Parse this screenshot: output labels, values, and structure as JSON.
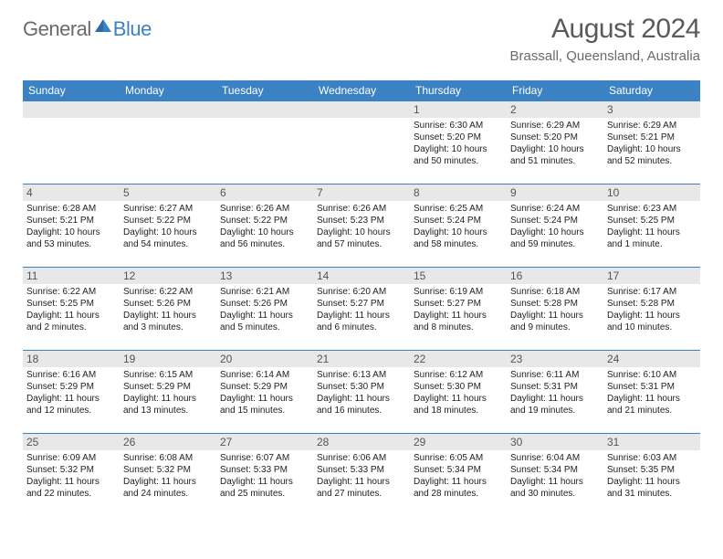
{
  "logo": {
    "general": "General",
    "blue": "Blue"
  },
  "header": {
    "title": "August 2024",
    "location": "Brassall, Queensland, Australia"
  },
  "colors": {
    "accent": "#3b82c4",
    "header_bg": "#3b82c4",
    "header_fg": "#ffffff",
    "daynum_bg": "#e8e8e8",
    "daynum_fg": "#555555",
    "border": "#3b82c4",
    "text": "#222222",
    "title_fg": "#5a5a5a",
    "logo_gray": "#6a6a6a"
  },
  "day_headers": [
    "Sunday",
    "Monday",
    "Tuesday",
    "Wednesday",
    "Thursday",
    "Friday",
    "Saturday"
  ],
  "weeks": [
    [
      {
        "num": "",
        "sunrise": "",
        "sunset": "",
        "daylight": ""
      },
      {
        "num": "",
        "sunrise": "",
        "sunset": "",
        "daylight": ""
      },
      {
        "num": "",
        "sunrise": "",
        "sunset": "",
        "daylight": ""
      },
      {
        "num": "",
        "sunrise": "",
        "sunset": "",
        "daylight": ""
      },
      {
        "num": "1",
        "sunrise": "Sunrise: 6:30 AM",
        "sunset": "Sunset: 5:20 PM",
        "daylight": "Daylight: 10 hours and 50 minutes."
      },
      {
        "num": "2",
        "sunrise": "Sunrise: 6:29 AM",
        "sunset": "Sunset: 5:20 PM",
        "daylight": "Daylight: 10 hours and 51 minutes."
      },
      {
        "num": "3",
        "sunrise": "Sunrise: 6:29 AM",
        "sunset": "Sunset: 5:21 PM",
        "daylight": "Daylight: 10 hours and 52 minutes."
      }
    ],
    [
      {
        "num": "4",
        "sunrise": "Sunrise: 6:28 AM",
        "sunset": "Sunset: 5:21 PM",
        "daylight": "Daylight: 10 hours and 53 minutes."
      },
      {
        "num": "5",
        "sunrise": "Sunrise: 6:27 AM",
        "sunset": "Sunset: 5:22 PM",
        "daylight": "Daylight: 10 hours and 54 minutes."
      },
      {
        "num": "6",
        "sunrise": "Sunrise: 6:26 AM",
        "sunset": "Sunset: 5:22 PM",
        "daylight": "Daylight: 10 hours and 56 minutes."
      },
      {
        "num": "7",
        "sunrise": "Sunrise: 6:26 AM",
        "sunset": "Sunset: 5:23 PM",
        "daylight": "Daylight: 10 hours and 57 minutes."
      },
      {
        "num": "8",
        "sunrise": "Sunrise: 6:25 AM",
        "sunset": "Sunset: 5:24 PM",
        "daylight": "Daylight: 10 hours and 58 minutes."
      },
      {
        "num": "9",
        "sunrise": "Sunrise: 6:24 AM",
        "sunset": "Sunset: 5:24 PM",
        "daylight": "Daylight: 10 hours and 59 minutes."
      },
      {
        "num": "10",
        "sunrise": "Sunrise: 6:23 AM",
        "sunset": "Sunset: 5:25 PM",
        "daylight": "Daylight: 11 hours and 1 minute."
      }
    ],
    [
      {
        "num": "11",
        "sunrise": "Sunrise: 6:22 AM",
        "sunset": "Sunset: 5:25 PM",
        "daylight": "Daylight: 11 hours and 2 minutes."
      },
      {
        "num": "12",
        "sunrise": "Sunrise: 6:22 AM",
        "sunset": "Sunset: 5:26 PM",
        "daylight": "Daylight: 11 hours and 3 minutes."
      },
      {
        "num": "13",
        "sunrise": "Sunrise: 6:21 AM",
        "sunset": "Sunset: 5:26 PM",
        "daylight": "Daylight: 11 hours and 5 minutes."
      },
      {
        "num": "14",
        "sunrise": "Sunrise: 6:20 AM",
        "sunset": "Sunset: 5:27 PM",
        "daylight": "Daylight: 11 hours and 6 minutes."
      },
      {
        "num": "15",
        "sunrise": "Sunrise: 6:19 AM",
        "sunset": "Sunset: 5:27 PM",
        "daylight": "Daylight: 11 hours and 8 minutes."
      },
      {
        "num": "16",
        "sunrise": "Sunrise: 6:18 AM",
        "sunset": "Sunset: 5:28 PM",
        "daylight": "Daylight: 11 hours and 9 minutes."
      },
      {
        "num": "17",
        "sunrise": "Sunrise: 6:17 AM",
        "sunset": "Sunset: 5:28 PM",
        "daylight": "Daylight: 11 hours and 10 minutes."
      }
    ],
    [
      {
        "num": "18",
        "sunrise": "Sunrise: 6:16 AM",
        "sunset": "Sunset: 5:29 PM",
        "daylight": "Daylight: 11 hours and 12 minutes."
      },
      {
        "num": "19",
        "sunrise": "Sunrise: 6:15 AM",
        "sunset": "Sunset: 5:29 PM",
        "daylight": "Daylight: 11 hours and 13 minutes."
      },
      {
        "num": "20",
        "sunrise": "Sunrise: 6:14 AM",
        "sunset": "Sunset: 5:29 PM",
        "daylight": "Daylight: 11 hours and 15 minutes."
      },
      {
        "num": "21",
        "sunrise": "Sunrise: 6:13 AM",
        "sunset": "Sunset: 5:30 PM",
        "daylight": "Daylight: 11 hours and 16 minutes."
      },
      {
        "num": "22",
        "sunrise": "Sunrise: 6:12 AM",
        "sunset": "Sunset: 5:30 PM",
        "daylight": "Daylight: 11 hours and 18 minutes."
      },
      {
        "num": "23",
        "sunrise": "Sunrise: 6:11 AM",
        "sunset": "Sunset: 5:31 PM",
        "daylight": "Daylight: 11 hours and 19 minutes."
      },
      {
        "num": "24",
        "sunrise": "Sunrise: 6:10 AM",
        "sunset": "Sunset: 5:31 PM",
        "daylight": "Daylight: 11 hours and 21 minutes."
      }
    ],
    [
      {
        "num": "25",
        "sunrise": "Sunrise: 6:09 AM",
        "sunset": "Sunset: 5:32 PM",
        "daylight": "Daylight: 11 hours and 22 minutes."
      },
      {
        "num": "26",
        "sunrise": "Sunrise: 6:08 AM",
        "sunset": "Sunset: 5:32 PM",
        "daylight": "Daylight: 11 hours and 24 minutes."
      },
      {
        "num": "27",
        "sunrise": "Sunrise: 6:07 AM",
        "sunset": "Sunset: 5:33 PM",
        "daylight": "Daylight: 11 hours and 25 minutes."
      },
      {
        "num": "28",
        "sunrise": "Sunrise: 6:06 AM",
        "sunset": "Sunset: 5:33 PM",
        "daylight": "Daylight: 11 hours and 27 minutes."
      },
      {
        "num": "29",
        "sunrise": "Sunrise: 6:05 AM",
        "sunset": "Sunset: 5:34 PM",
        "daylight": "Daylight: 11 hours and 28 minutes."
      },
      {
        "num": "30",
        "sunrise": "Sunrise: 6:04 AM",
        "sunset": "Sunset: 5:34 PM",
        "daylight": "Daylight: 11 hours and 30 minutes."
      },
      {
        "num": "31",
        "sunrise": "Sunrise: 6:03 AM",
        "sunset": "Sunset: 5:35 PM",
        "daylight": "Daylight: 11 hours and 31 minutes."
      }
    ]
  ]
}
